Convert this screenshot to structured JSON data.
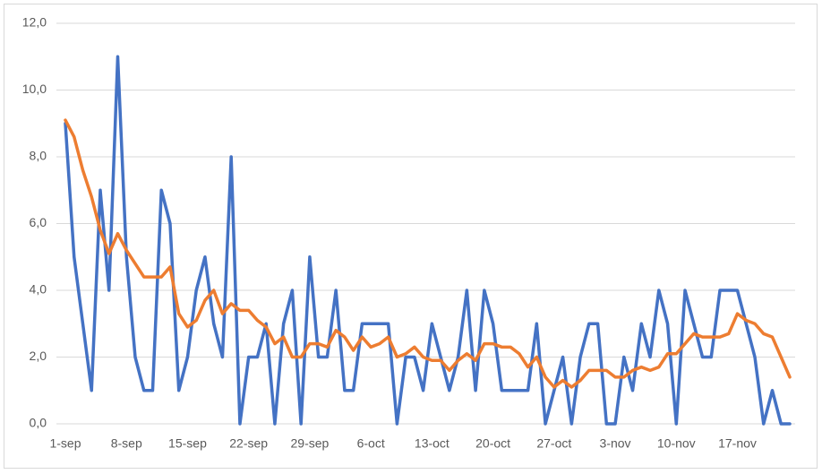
{
  "chart_data": {
    "type": "line",
    "categories": [
      "1-sep",
      null,
      null,
      null,
      null,
      null,
      null,
      "8-sep",
      null,
      null,
      null,
      null,
      null,
      null,
      "15-sep",
      null,
      null,
      null,
      null,
      null,
      null,
      "22-sep",
      null,
      null,
      null,
      null,
      null,
      null,
      "29-sep",
      null,
      null,
      null,
      null,
      null,
      null,
      "6-oct",
      null,
      null,
      null,
      null,
      null,
      null,
      "13-oct",
      null,
      null,
      null,
      null,
      null,
      null,
      "20-oct",
      null,
      null,
      null,
      null,
      null,
      null,
      "27-oct",
      null,
      null,
      null,
      null,
      null,
      null,
      "3-nov",
      null,
      null,
      null,
      null,
      null,
      null,
      "10-nov",
      null,
      null,
      null,
      null,
      null,
      null,
      "17-nov",
      null,
      null,
      null,
      null,
      null,
      null
    ],
    "series": [
      {
        "color": "#4472c4",
        "values": [
          9,
          5,
          3,
          1,
          7,
          4,
          11,
          5,
          2,
          1,
          1,
          7,
          6,
          1,
          2,
          4,
          5,
          3,
          2,
          8,
          0,
          2,
          2,
          3,
          0,
          3,
          4,
          0,
          5,
          2,
          2,
          4,
          1,
          1,
          3,
          3,
          3,
          3,
          0,
          2,
          2,
          1,
          3,
          2,
          1,
          2,
          4,
          1,
          4,
          3,
          1,
          1,
          1,
          1,
          3,
          0,
          1,
          2,
          0,
          2,
          3,
          3,
          0,
          0,
          2,
          1,
          3,
          2,
          4,
          3,
          0,
          4,
          3,
          2,
          2,
          4,
          4,
          4,
          3,
          2,
          0,
          1,
          0,
          0
        ]
      },
      {
        "color": "#ed7d31",
        "values": [
          9.1,
          8.6,
          7.6,
          6.8,
          5.8,
          5.1,
          5.7,
          5.2,
          4.8,
          4.4,
          4.4,
          4.4,
          4.7,
          3.3,
          2.9,
          3.1,
          3.7,
          4.0,
          3.3,
          3.6,
          3.4,
          3.4,
          3.1,
          2.9,
          2.4,
          2.6,
          2.0,
          2.0,
          2.4,
          2.4,
          2.3,
          2.8,
          2.6,
          2.2,
          2.6,
          2.3,
          2.4,
          2.6,
          2.0,
          2.1,
          2.3,
          2.0,
          1.9,
          1.9,
          1.6,
          1.9,
          2.1,
          1.9,
          2.4,
          2.4,
          2.3,
          2.3,
          2.1,
          1.7,
          2.0,
          1.4,
          1.1,
          1.3,
          1.1,
          1.3,
          1.6,
          1.6,
          1.6,
          1.4,
          1.4,
          1.6,
          1.7,
          1.6,
          1.7,
          2.1,
          2.1,
          2.4,
          2.7,
          2.6,
          2.6,
          2.6,
          2.7,
          3.3,
          3.1,
          3.0,
          2.7,
          2.6,
          2.0,
          1.4
        ]
      }
    ],
    "ylim": [
      0,
      12
    ],
    "yticks": [
      {
        "value": 0,
        "label": "0,0"
      },
      {
        "value": 2,
        "label": "2,0"
      },
      {
        "value": 4,
        "label": "4,0"
      },
      {
        "value": 6,
        "label": "6,0"
      },
      {
        "value": 8,
        "label": "8,0"
      },
      {
        "value": 10,
        "label": "10,0"
      },
      {
        "value": 12,
        "label": "12,0"
      }
    ],
    "grid": true
  }
}
